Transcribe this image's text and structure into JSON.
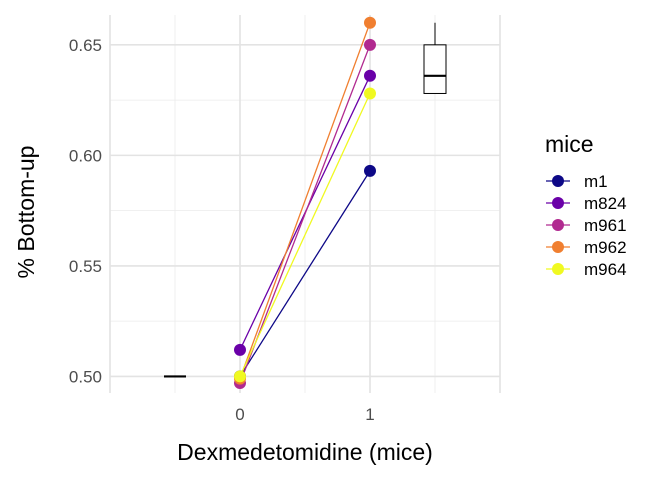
{
  "chart_data": {
    "type": "line",
    "xlabel": "Dexmedetomidine (mice)",
    "ylabel": "% Bottom-up",
    "x_categories": [
      "0",
      "1"
    ],
    "xlim": [
      -1,
      2
    ],
    "ylim": [
      0.4925,
      0.6635
    ],
    "y_ticks": [
      0.5,
      0.55,
      0.6,
      0.65
    ],
    "y_tick_labels": [
      "0.50",
      "0.55",
      "0.60",
      "0.65"
    ],
    "grid": true,
    "legend_title": "mice",
    "legend_position": "right",
    "series": [
      {
        "name": "m1",
        "color": "#0d0887",
        "values": [
          0.5,
          0.593
        ]
      },
      {
        "name": "m824",
        "color": "#6a00a8",
        "values": [
          0.512,
          0.636
        ]
      },
      {
        "name": "m961",
        "color": "#b12a90",
        "values": [
          0.497,
          0.65
        ]
      },
      {
        "name": "m962",
        "color": "#f07f30",
        "values": [
          0.499,
          0.66
        ]
      },
      {
        "name": "m964",
        "color": "#f0f921",
        "values": [
          0.5,
          0.628
        ]
      }
    ],
    "boxplots": [
      {
        "x": -0.5,
        "min": 0.5,
        "q1": 0.5,
        "median": 0.5,
        "q3": 0.5,
        "max": 0.5
      },
      {
        "x": 1.5,
        "min": 0.628,
        "q1": 0.628,
        "median": 0.636,
        "q3": 0.65,
        "max": 0.66
      }
    ]
  }
}
